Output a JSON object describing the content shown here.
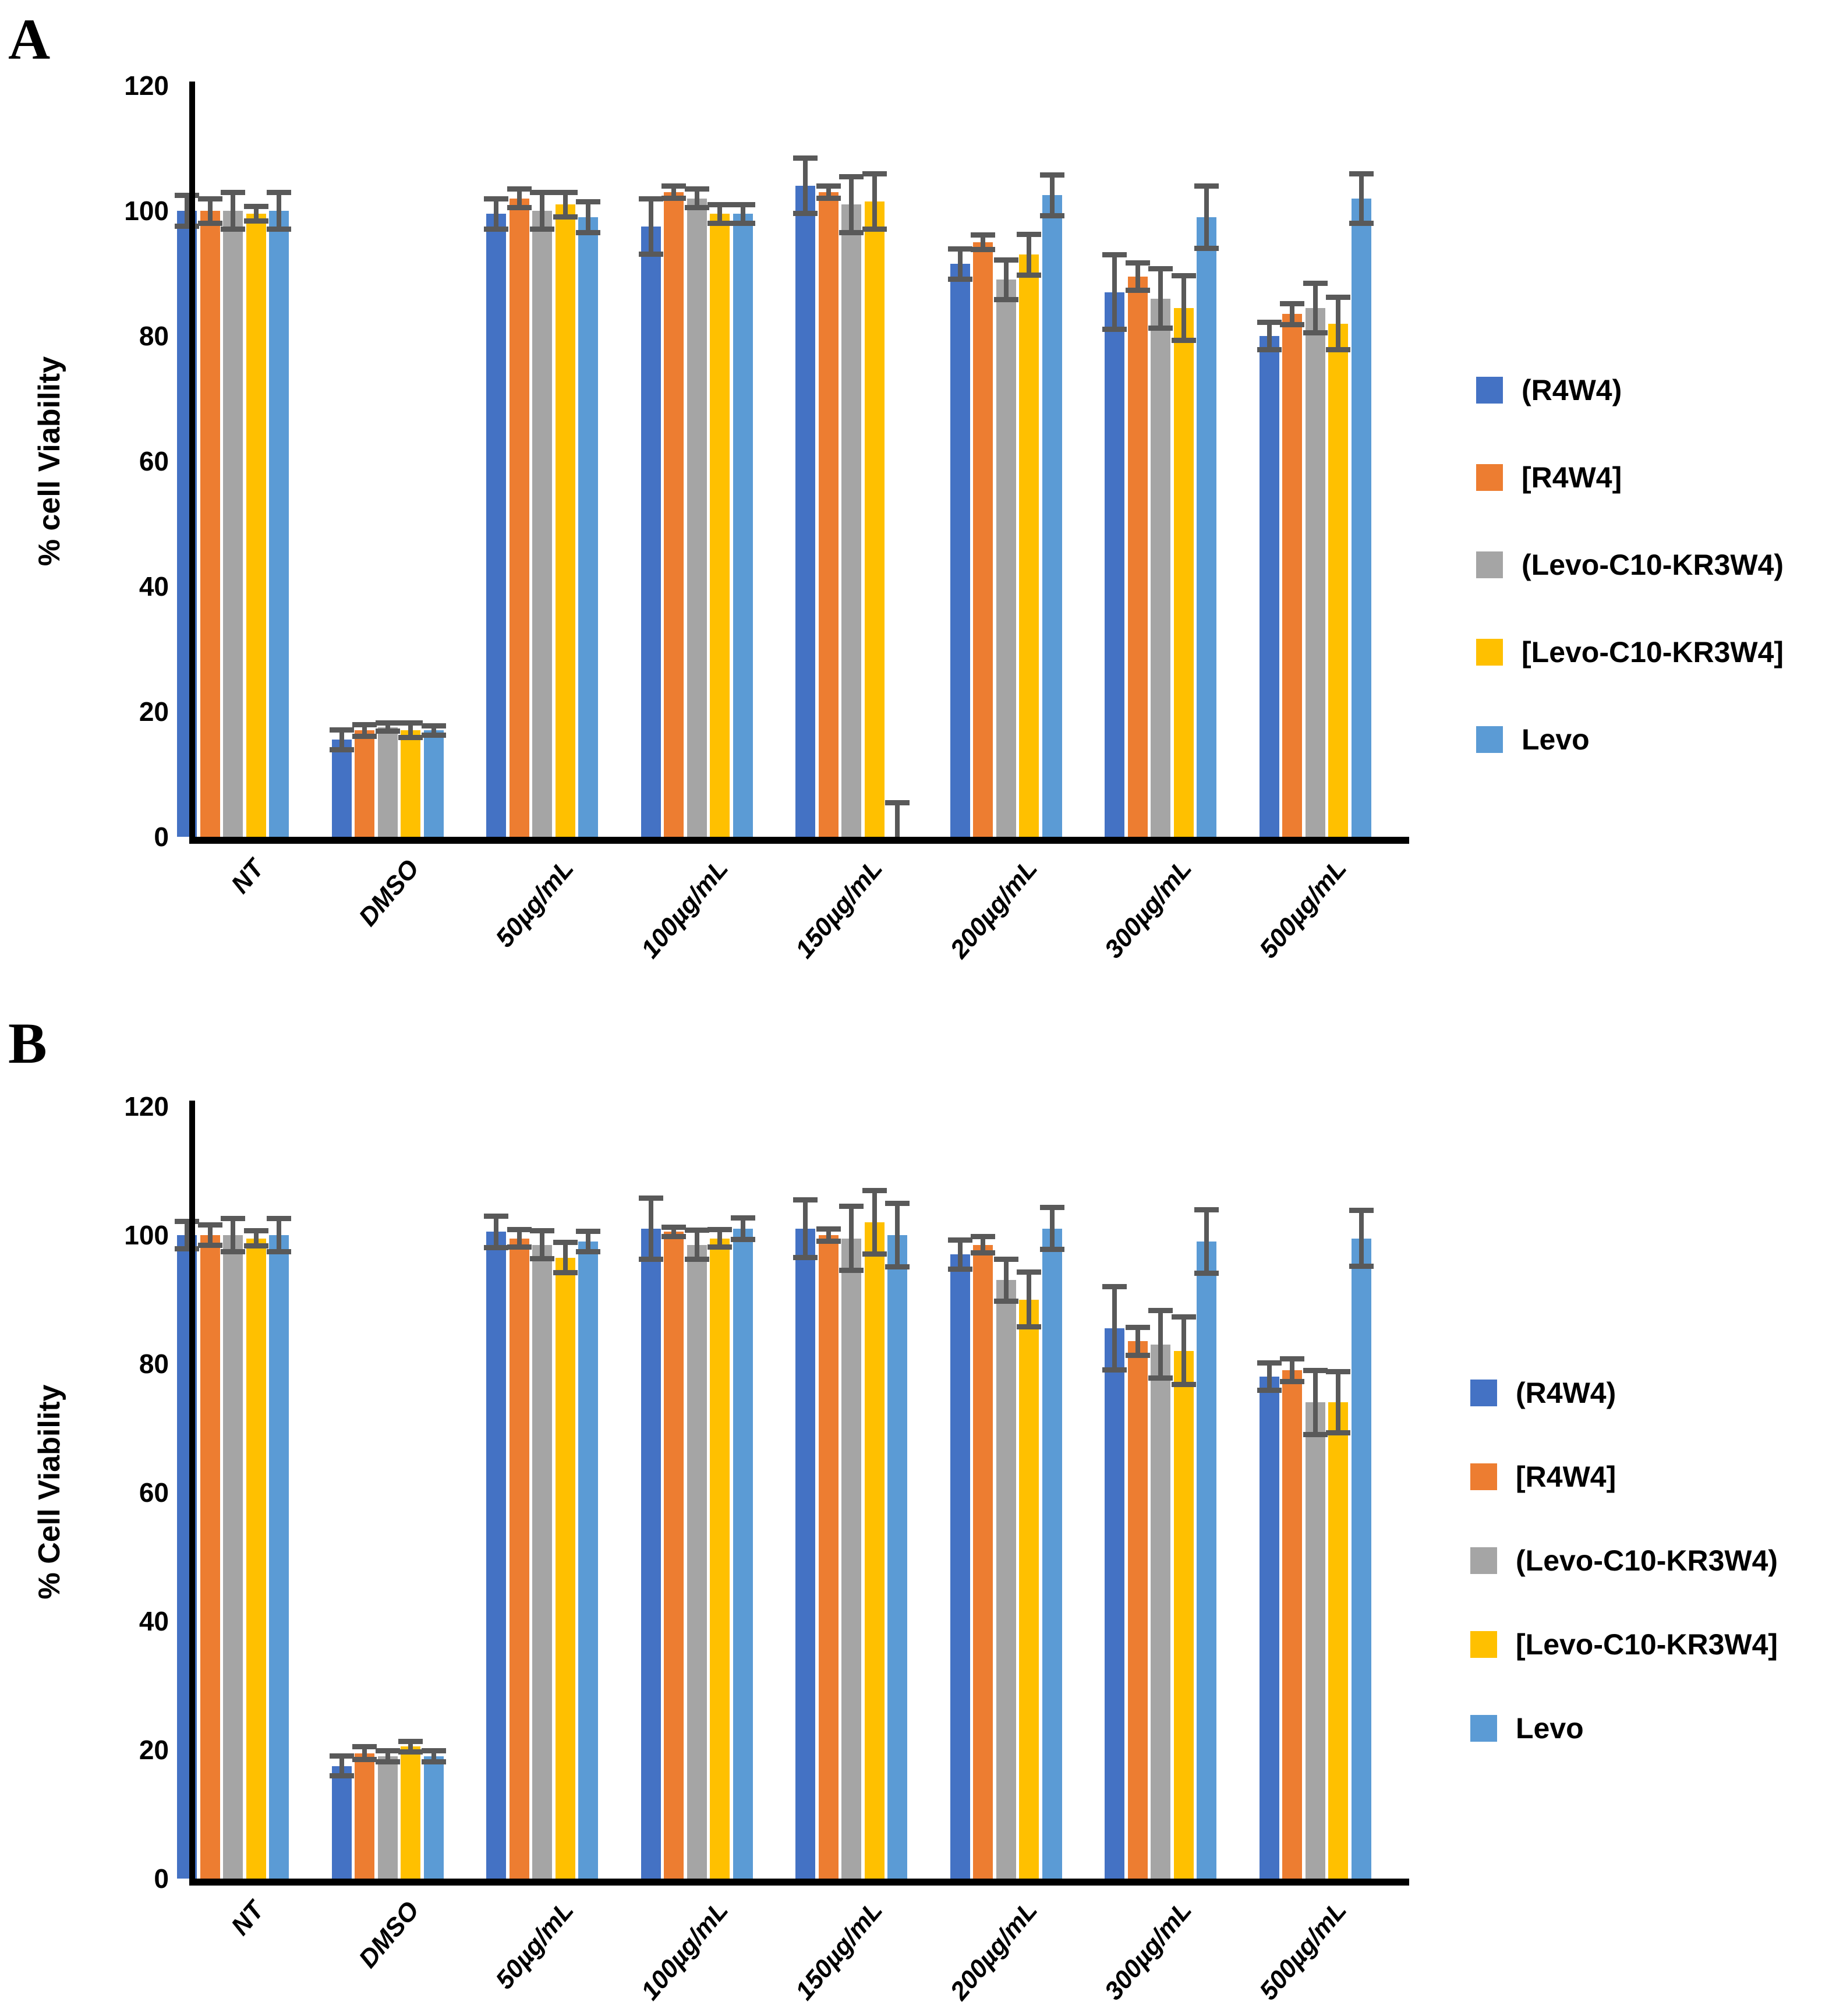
{
  "figure_colors": {
    "series_blue": "#4472C4",
    "series_orange": "#ED7D31",
    "series_gray": "#A5A5A5",
    "series_yellow": "#FFC000",
    "series_lightblue": "#5B9BD5",
    "error_bar": "#595959",
    "axis": "#000000"
  },
  "chart_data": [
    {
      "type": "bar",
      "panel_label": "A",
      "title": "",
      "xlabel": "",
      "ylabel": "% cell Viability",
      "ylim": [
        0,
        120
      ],
      "yticks": [
        0,
        20,
        40,
        60,
        80,
        100,
        120
      ],
      "grid": false,
      "legend_position": "right",
      "categories": [
        "NT",
        "DMSO",
        "50µg/mL",
        "100µg/mL",
        "150µg/mL",
        "200µg/mL",
        "300µg/mL",
        "500µg/mL"
      ],
      "series": [
        {
          "name": "(R4W4)",
          "color": "#4472C4",
          "values": [
            100,
            15.5,
            99.5,
            97.5,
            104,
            91.5,
            87,
            80
          ],
          "errors": [
            2.5,
            1.6,
            2.5,
            4.5,
            4.5,
            2.5,
            6,
            2.2
          ]
        },
        {
          "name": "[R4W4]",
          "color": "#ED7D31",
          "values": [
            100,
            17,
            102,
            103,
            103,
            95,
            89.5,
            83.5
          ],
          "errors": [
            2,
            1,
            1.5,
            1,
            1,
            1.2,
            2.2,
            1.7
          ]
        },
        {
          "name": "(Levo-C10-KR3W4)",
          "color": "#A5A5A5",
          "values": [
            100,
            17.5,
            100,
            102,
            101,
            89,
            86,
            84.5
          ],
          "errors": [
            3,
            0.7,
            3,
            1.5,
            4.5,
            3.2,
            4.8,
            4
          ]
        },
        {
          "name": "[Levo-C10-KR3W4]",
          "color": "#FFC000",
          "values": [
            99.5,
            17,
            101,
            99.5,
            101.5,
            93,
            84.5,
            82
          ],
          "errors": [
            1.2,
            1.2,
            2,
            1.5,
            4.5,
            3.3,
            5.2,
            4.2
          ]
        },
        {
          "name": "Levo",
          "color": "#5B9BD5",
          "values": [
            100,
            17,
            99,
            99.5,
            0,
            102.5,
            99,
            102
          ],
          "errors": [
            3,
            0.8,
            2.5,
            1.5,
            5.5,
            3.3,
            5,
            4
          ]
        }
      ]
    },
    {
      "type": "bar",
      "panel_label": "B",
      "title": "",
      "xlabel": "",
      "ylabel": "% Cell Viability",
      "ylim": [
        0,
        120
      ],
      "yticks": [
        0,
        20,
        40,
        60,
        80,
        100,
        120
      ],
      "grid": false,
      "legend_position": "right",
      "categories": [
        "NT",
        "DMSO",
        "50µg/mL",
        "100µg/mL",
        "150µg/mL",
        "200µg/mL",
        "300µg/mL",
        "500µg/mL"
      ],
      "series": [
        {
          "name": "(R4W4)",
          "color": "#4472C4",
          "values": [
            100,
            17.5,
            100.5,
            101,
            101,
            97,
            85.5,
            78
          ],
          "errors": [
            2.2,
            1.6,
            2.5,
            4.8,
            4.5,
            2.3,
            6.5,
            2.2
          ]
        },
        {
          "name": "[R4W4]",
          "color": "#ED7D31",
          "values": [
            100,
            19.5,
            99.5,
            100.5,
            100,
            98.5,
            83.5,
            79
          ],
          "errors": [
            1.6,
            1,
            1.4,
            0.8,
            1,
            1.3,
            2.2,
            1.8
          ]
        },
        {
          "name": "(Levo-C10-KR3W4)",
          "color": "#A5A5A5",
          "values": [
            100,
            19,
            98.5,
            98.5,
            99.5,
            93,
            83,
            74
          ],
          "errors": [
            2.6,
            0.9,
            2.2,
            2.3,
            5,
            3.3,
            5.3,
            5
          ]
        },
        {
          "name": "[Levo-C10-KR3W4]",
          "color": "#FFC000",
          "values": [
            99.5,
            20.5,
            96.5,
            99.5,
            102,
            90,
            82,
            74
          ],
          "errors": [
            1.2,
            0.9,
            2.4,
            1.4,
            5,
            4.3,
            5.3,
            4.8
          ]
        },
        {
          "name": "Levo",
          "color": "#5B9BD5",
          "values": [
            100,
            19,
            99,
            101,
            100,
            101,
            99,
            99.5
          ],
          "errors": [
            2.6,
            0.9,
            1.6,
            1.7,
            5,
            3.3,
            5,
            4.4
          ]
        }
      ]
    }
  ]
}
